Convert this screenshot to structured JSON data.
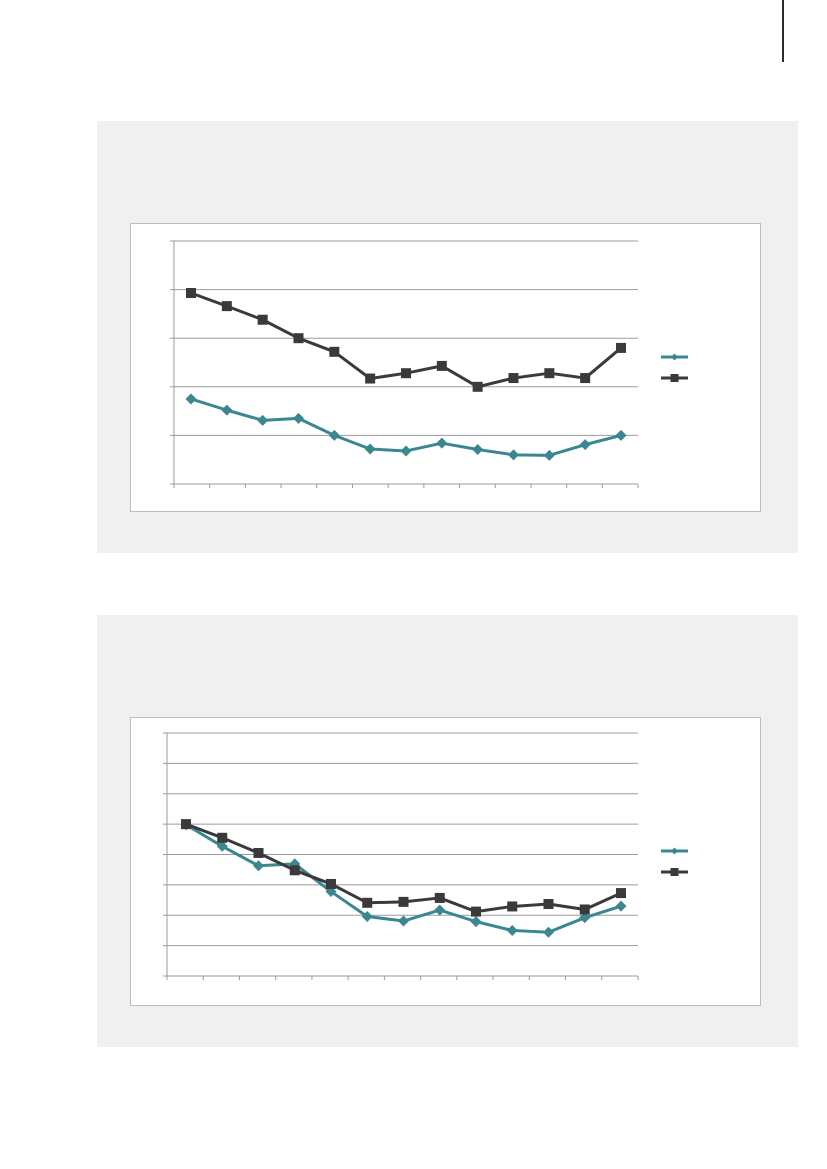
{
  "colors": {
    "panel_bg": "#f0f0f0",
    "teal": "#3a8790",
    "dark": "#3a3a3a",
    "grid": "#9b9b9b"
  },
  "chart_data": [
    {
      "type": "line",
      "title": "",
      "xlabel": "",
      "ylabel": "",
      "ylim": [
        0,
        5
      ],
      "grid": true,
      "legend": "right",
      "n_points": 13,
      "series": [
        {
          "marker": "diamond",
          "color": "#3a8790",
          "values": [
            1.75,
            1.52,
            1.31,
            1.35,
            1.0,
            0.72,
            0.68,
            0.84,
            0.71,
            0.6,
            0.59,
            0.81,
            1.0
          ]
        },
        {
          "marker": "square",
          "color": "#3a3a3a",
          "values": [
            3.93,
            3.66,
            3.38,
            3.0,
            2.72,
            2.17,
            2.28,
            2.43,
            2.0,
            2.18,
            2.28,
            2.18,
            2.8
          ]
        }
      ]
    },
    {
      "type": "line",
      "title": "",
      "xlabel": "",
      "ylabel": "",
      "ylim": [
        0,
        8
      ],
      "grid": true,
      "legend": "right",
      "n_points": 13,
      "series": [
        {
          "marker": "diamond",
          "color": "#3a8790",
          "values": [
            4.98,
            4.27,
            3.63,
            3.69,
            2.78,
            1.96,
            1.81,
            2.17,
            1.79,
            1.5,
            1.44,
            1.92,
            2.3
          ]
        },
        {
          "marker": "square",
          "color": "#3a3a3a",
          "values": [
            5.0,
            4.55,
            4.05,
            3.48,
            3.03,
            2.41,
            2.44,
            2.57,
            2.12,
            2.29,
            2.37,
            2.19,
            2.73
          ]
        }
      ]
    }
  ]
}
